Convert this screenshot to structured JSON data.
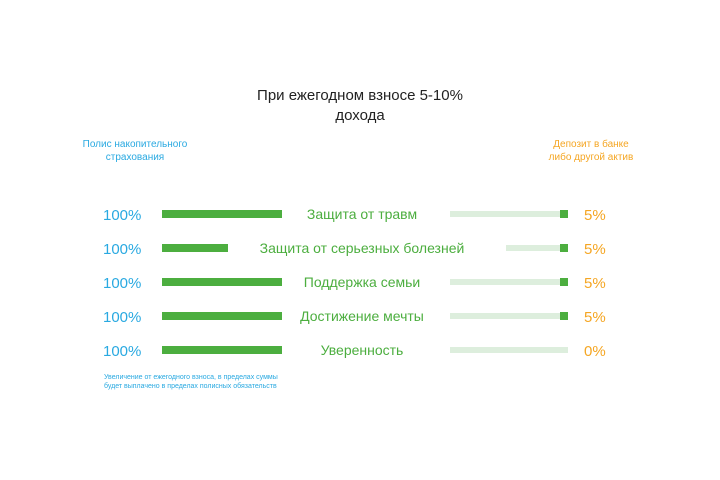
{
  "title_line1": "При ежегодном взносе 5-10%",
  "title_line2": "дохода",
  "colors": {
    "blue": "#29a9e1",
    "orange": "#f5a623",
    "green_dark": "#4cae3f",
    "green_light": "#ddeedd",
    "green_label": "#4cae3f"
  },
  "legend": {
    "left_line1": "Полис накопительного",
    "left_line2": "страхования",
    "right_line1": "Депозит в банке",
    "right_line2": "либо другой актив"
  },
  "chart_data": {
    "type": "bar",
    "categories": [
      "Защита от травм",
      "Защита от серьезных болезней",
      "Поддержка семьи",
      "Достижение мечты",
      "Уверенность"
    ],
    "series": [
      {
        "name": "Полис накопительного страхования",
        "values": [
          100,
          100,
          100,
          100,
          100
        ],
        "labels": [
          "100%",
          "100%",
          "100%",
          "100%",
          "100%"
        ]
      },
      {
        "name": "Депозит в банке либо другой актив",
        "values": [
          5,
          5,
          5,
          5,
          0
        ],
        "labels": [
          "5%",
          "5%",
          "5%",
          "5%",
          "0%"
        ]
      }
    ]
  },
  "footnote_line1": "Увеличение от ежегодного взноса, в пределах суммы",
  "footnote_line2": "будет выплачено в пределах полисных обязательств"
}
